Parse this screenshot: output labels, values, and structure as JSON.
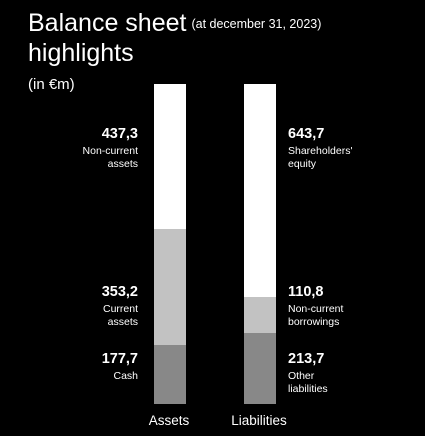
{
  "title": "Balance sheet",
  "subtitle": "(at december 31, 2023)",
  "title_line2": "highlights",
  "unit": "(in €m)",
  "colors": {
    "light": "#ffffff",
    "mid": "#c2c2c2",
    "dark": "#888888",
    "background": "#000000"
  },
  "chart_data": {
    "type": "bar",
    "stacked": true,
    "categories": [
      "Assets",
      "Liabilities"
    ],
    "stacks": [
      {
        "category": "Assets",
        "segments": [
          {
            "value": 177.7,
            "value_label": "177,7",
            "label": "Cash",
            "color": "#888888"
          },
          {
            "value": 353.2,
            "value_label": "353,2",
            "label": "Current\nassets",
            "color": "#c2c2c2"
          },
          {
            "value": 437.3,
            "value_label": "437,3",
            "label": "Non-current\nassets",
            "color": "#ffffff"
          }
        ]
      },
      {
        "category": "Liabilities",
        "segments": [
          {
            "value": 213.7,
            "value_label": "213,7",
            "label": "Other\nliabilities",
            "color": "#888888"
          },
          {
            "value": 110.8,
            "value_label": "110,8",
            "label": "Non-current\nborrowings",
            "color": "#c2c2c2"
          },
          {
            "value": 643.7,
            "value_label": "643,7",
            "label": "Shareholders'\nequity",
            "color": "#ffffff"
          }
        ]
      }
    ],
    "total": 968.2
  }
}
